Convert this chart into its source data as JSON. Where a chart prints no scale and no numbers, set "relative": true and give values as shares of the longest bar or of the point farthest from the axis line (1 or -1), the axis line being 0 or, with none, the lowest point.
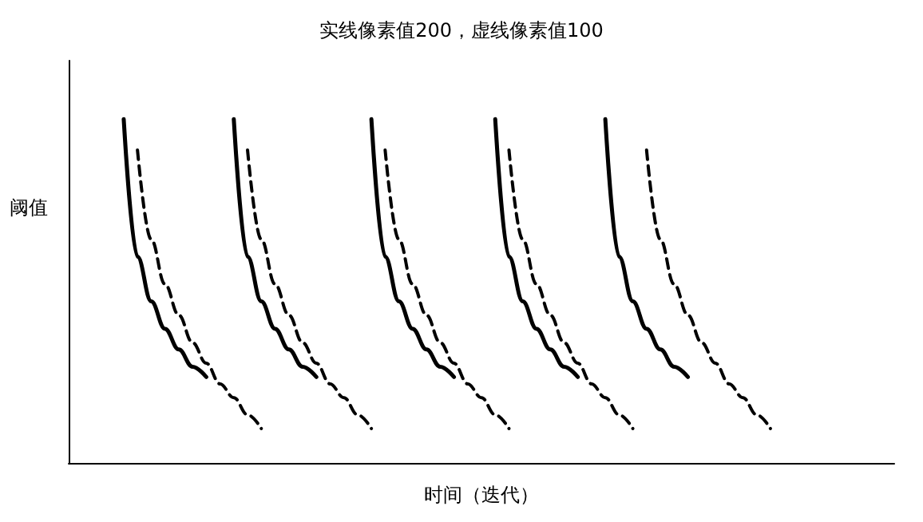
{
  "chart_data": {
    "type": "line",
    "relative": true,
    "title": "实线像素值200，虚线像素值100",
    "xlabel": "时间（迭代）",
    "ylabel": "阈值",
    "marker": "none",
    "categories": [
      null,
      null,
      null,
      null,
      null,
      null,
      null,
      null,
      null,
      null,
      null,
      null,
      null,
      null,
      null,
      null,
      null,
      null,
      null,
      null,
      null,
      null,
      null,
      null,
      null,
      null,
      null,
      null,
      null,
      null,
      null,
      null,
      null,
      null,
      null,
      null,
      null,
      null,
      null,
      null,
      null,
      null,
      null,
      null,
      null,
      null,
      null,
      null,
      null,
      null,
      null,
      null,
      null,
      null,
      null,
      null,
      null,
      null,
      null,
      null,
      null
    ],
    "series": [
      {
        "color": "#000000",
        "line_style": "solid",
        "values": [
          null,
          null,
          null,
          null,
          1,
          0.6,
          0.47,
          0.39,
          0.33,
          0.28,
          0.25,
          null,
          null,
          null,
          null,
          null,
          null,
          null,
          null,
          null,
          null,
          null,
          null,
          null,
          null,
          null,
          null,
          null,
          null,
          null,
          null,
          null,
          null,
          null,
          null,
          null,
          null,
          null,
          null,
          null,
          null,
          null,
          null,
          null,
          null,
          null,
          null,
          null,
          null,
          null,
          null,
          null,
          null,
          null,
          null,
          null,
          null,
          null,
          null,
          null,
          null
        ]
      },
      {
        "color": "#000000",
        "line_style": "solid",
        "values": [
          null,
          null,
          null,
          null,
          null,
          null,
          null,
          null,
          null,
          null,
          null,
          null,
          1,
          0.6,
          0.47,
          0.39,
          0.33,
          0.28,
          0.25,
          null,
          null,
          null,
          null,
          null,
          null,
          null,
          null,
          null,
          null,
          null,
          null,
          null,
          null,
          null,
          null,
          null,
          null,
          null,
          null,
          null,
          null,
          null,
          null,
          null,
          null,
          null,
          null,
          null,
          null,
          null,
          null,
          null,
          null,
          null,
          null,
          null,
          null,
          null,
          null,
          null,
          null
        ]
      },
      {
        "color": "#000000",
        "line_style": "solid",
        "values": [
          null,
          null,
          null,
          null,
          null,
          null,
          null,
          null,
          null,
          null,
          null,
          null,
          null,
          null,
          null,
          null,
          null,
          null,
          null,
          null,
          null,
          null,
          1,
          0.6,
          0.47,
          0.39,
          0.33,
          0.28,
          0.25,
          null,
          null,
          null,
          null,
          null,
          null,
          null,
          null,
          null,
          null,
          null,
          null,
          null,
          null,
          null,
          null,
          null,
          null,
          null,
          null,
          null,
          null,
          null,
          null,
          null,
          null,
          null,
          null,
          null,
          null,
          null,
          null
        ]
      },
      {
        "color": "#000000",
        "line_style": "solid",
        "values": [
          null,
          null,
          null,
          null,
          null,
          null,
          null,
          null,
          null,
          null,
          null,
          null,
          null,
          null,
          null,
          null,
          null,
          null,
          null,
          null,
          null,
          null,
          null,
          null,
          null,
          null,
          null,
          null,
          null,
          null,
          null,
          1,
          0.6,
          0.47,
          0.39,
          0.33,
          0.28,
          0.25,
          null,
          null,
          null,
          null,
          null,
          null,
          null,
          null,
          null,
          null,
          null,
          null,
          null,
          null,
          null,
          null,
          null,
          null,
          null,
          null,
          null,
          null,
          null
        ]
      },
      {
        "color": "#000000",
        "line_style": "solid",
        "values": [
          null,
          null,
          null,
          null,
          null,
          null,
          null,
          null,
          null,
          null,
          null,
          null,
          null,
          null,
          null,
          null,
          null,
          null,
          null,
          null,
          null,
          null,
          null,
          null,
          null,
          null,
          null,
          null,
          null,
          null,
          null,
          null,
          null,
          null,
          null,
          null,
          null,
          null,
          null,
          1,
          0.6,
          0.47,
          0.39,
          0.33,
          0.28,
          0.25,
          null,
          null,
          null,
          null,
          null,
          null,
          null,
          null,
          null,
          null,
          null,
          null,
          null,
          null,
          null
        ]
      },
      {
        "color": "#000000",
        "line_style": "dashed",
        "values": [
          null,
          null,
          null,
          null,
          null,
          0.91,
          0.65,
          0.52,
          0.43,
          0.35,
          0.29,
          0.23,
          0.19,
          0.14,
          0.1,
          null,
          null,
          null,
          null,
          null,
          null,
          null,
          null,
          null,
          null,
          null,
          null,
          null,
          null,
          null,
          null,
          null,
          null,
          null,
          null,
          null,
          null,
          null,
          null,
          null,
          null,
          null,
          null,
          null,
          null,
          null,
          null,
          null,
          null,
          null,
          null,
          null,
          null,
          null,
          null,
          null,
          null,
          null,
          null,
          null,
          null
        ]
      },
      {
        "color": "#000000",
        "line_style": "dashed",
        "values": [
          null,
          null,
          null,
          null,
          null,
          null,
          null,
          null,
          null,
          null,
          null,
          null,
          null,
          0.91,
          0.65,
          0.52,
          0.43,
          0.35,
          0.29,
          0.23,
          0.19,
          0.14,
          0.1,
          null,
          null,
          null,
          null,
          null,
          null,
          null,
          null,
          null,
          null,
          null,
          null,
          null,
          null,
          null,
          null,
          null,
          null,
          null,
          null,
          null,
          null,
          null,
          null,
          null,
          null,
          null,
          null,
          null,
          null,
          null,
          null,
          null,
          null,
          null,
          null,
          null,
          null
        ]
      },
      {
        "color": "#000000",
        "line_style": "dashed",
        "values": [
          null,
          null,
          null,
          null,
          null,
          null,
          null,
          null,
          null,
          null,
          null,
          null,
          null,
          null,
          null,
          null,
          null,
          null,
          null,
          null,
          null,
          null,
          null,
          0.91,
          0.65,
          0.52,
          0.43,
          0.35,
          0.29,
          0.23,
          0.19,
          0.14,
          0.1,
          null,
          null,
          null,
          null,
          null,
          null,
          null,
          null,
          null,
          null,
          null,
          null,
          null,
          null,
          null,
          null,
          null,
          null,
          null,
          null,
          null,
          null,
          null,
          null,
          null,
          null,
          null,
          null
        ]
      },
      {
        "color": "#000000",
        "line_style": "dashed",
        "values": [
          null,
          null,
          null,
          null,
          null,
          null,
          null,
          null,
          null,
          null,
          null,
          null,
          null,
          null,
          null,
          null,
          null,
          null,
          null,
          null,
          null,
          null,
          null,
          null,
          null,
          null,
          null,
          null,
          null,
          null,
          null,
          null,
          0.91,
          0.65,
          0.52,
          0.43,
          0.35,
          0.29,
          0.23,
          0.19,
          0.14,
          0.1,
          null,
          null,
          null,
          null,
          null,
          null,
          null,
          null,
          null,
          null,
          null,
          null,
          null,
          null,
          null,
          null,
          null,
          null,
          null
        ]
      },
      {
        "color": "#000000",
        "line_style": "dashed",
        "values": [
          null,
          null,
          null,
          null,
          null,
          null,
          null,
          null,
          null,
          null,
          null,
          null,
          null,
          null,
          null,
          null,
          null,
          null,
          null,
          null,
          null,
          null,
          null,
          null,
          null,
          null,
          null,
          null,
          null,
          null,
          null,
          null,
          null,
          null,
          null,
          null,
          null,
          null,
          null,
          null,
          null,
          null,
          0.91,
          0.65,
          0.52,
          0.43,
          0.35,
          0.29,
          0.23,
          0.19,
          0.14,
          0.1,
          null,
          null,
          null,
          null,
          null,
          null,
          null,
          null,
          null
        ]
      }
    ]
  }
}
